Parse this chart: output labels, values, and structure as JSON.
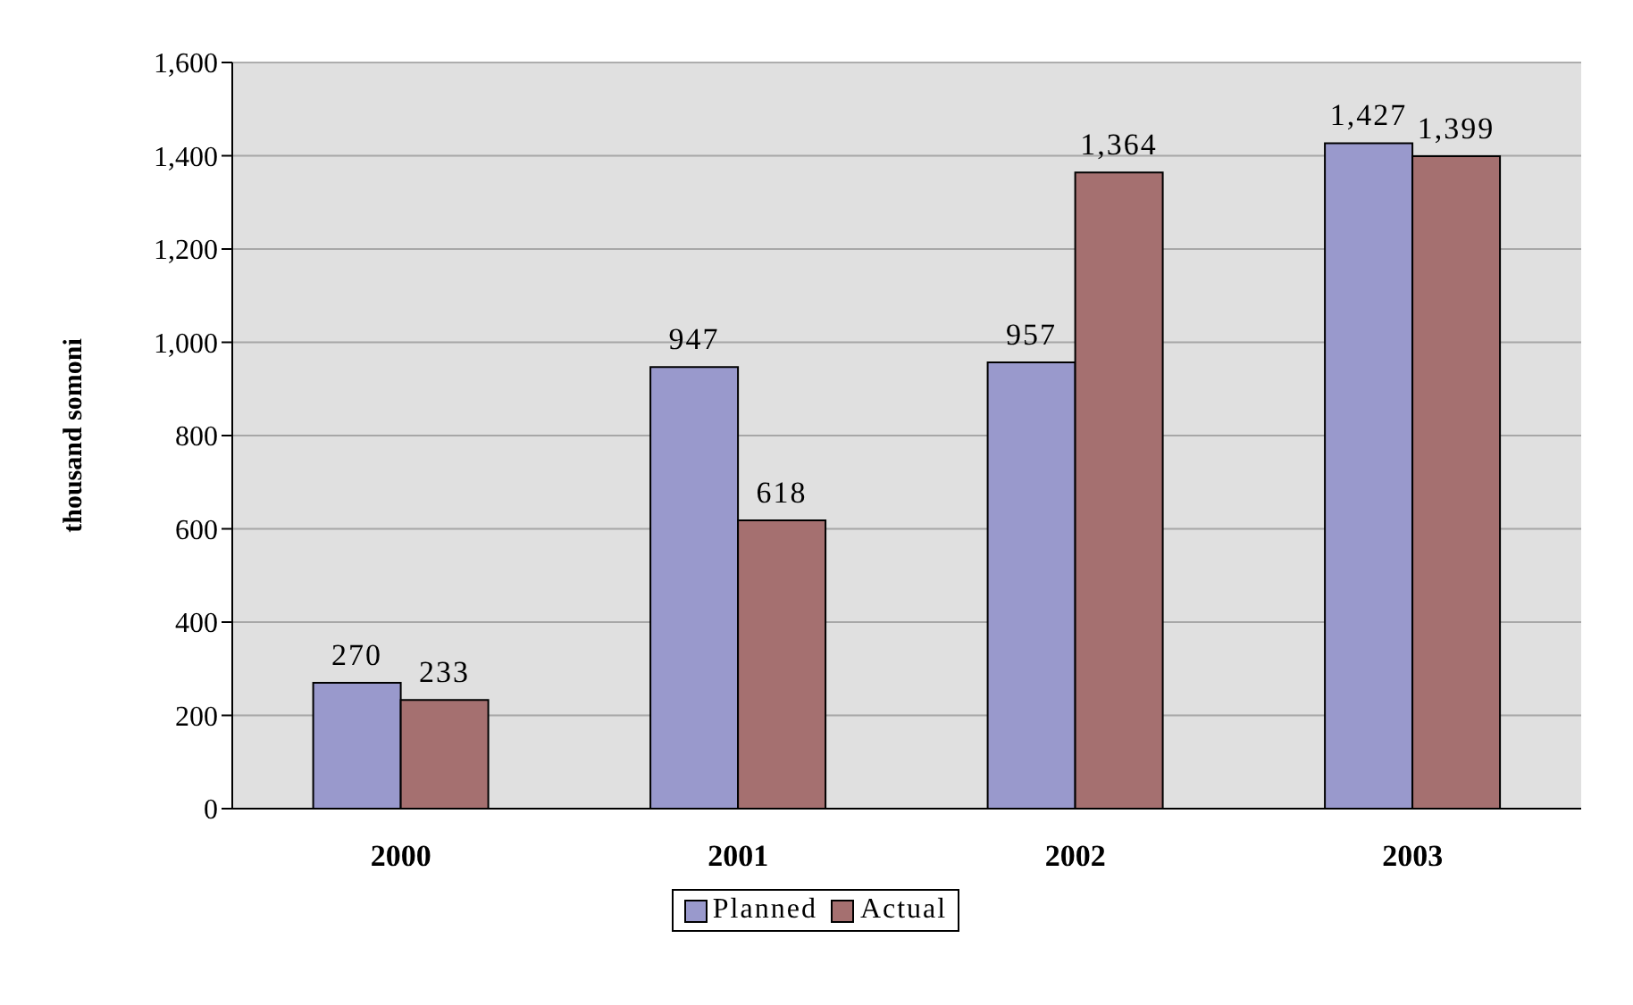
{
  "chart_data": {
    "type": "bar",
    "ylabel": "thousand somoni",
    "categories": [
      "2000",
      "2001",
      "2002",
      "2003"
    ],
    "series": [
      {
        "name": "Planned",
        "color": "#9999cc",
        "values": [
          270,
          947,
          957,
          1427
        ],
        "value_labels": [
          "270",
          "947",
          "957",
          "1,427"
        ]
      },
      {
        "name": "Actual",
        "color": "#a57070",
        "values": [
          233,
          618,
          1364,
          1399
        ],
        "value_labels": [
          "233",
          "618",
          "1,364",
          "1,399"
        ]
      }
    ],
    "ylim": [
      0,
      1600
    ],
    "yticks": [
      {
        "value": 0,
        "label": "0"
      },
      {
        "value": 200,
        "label": "200"
      },
      {
        "value": 400,
        "label": "400"
      },
      {
        "value": 600,
        "label": "600"
      },
      {
        "value": 800,
        "label": "800"
      },
      {
        "value": 1000,
        "label": "1,000"
      },
      {
        "value": 1200,
        "label": "1,200"
      },
      {
        "value": 1400,
        "label": "1,400"
      },
      {
        "value": 1600,
        "label": "1,600"
      }
    ],
    "grid": "y",
    "legend": "bottom"
  }
}
